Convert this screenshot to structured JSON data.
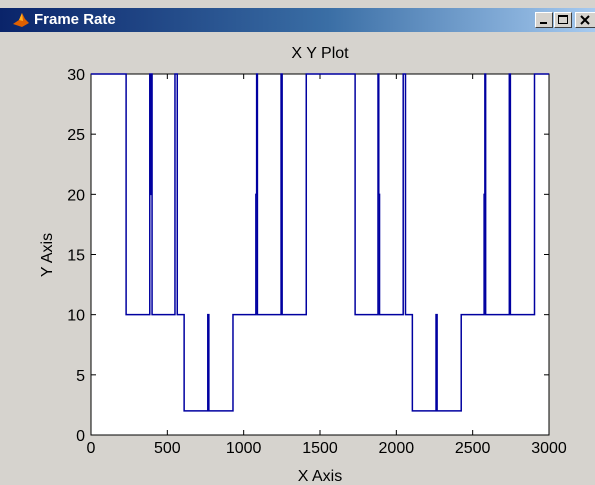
{
  "window": {
    "title": "Frame Rate",
    "icon": "matlab-icon",
    "controls": [
      "minimize-icon",
      "maximize-icon",
      "close-icon"
    ]
  },
  "chart_data": {
    "type": "line",
    "title": "X Y Plot",
    "xlabel": "X Axis",
    "ylabel": "Y Axis",
    "xlim": [
      0,
      3000
    ],
    "ylim": [
      0,
      30
    ],
    "xticks": [
      0,
      500,
      1000,
      1500,
      2000,
      2500,
      3000
    ],
    "yticks": [
      0,
      5,
      10,
      15,
      20,
      25,
      30
    ],
    "grid": false,
    "line_color": "#0000a0",
    "series": [
      {
        "x": [
          0,
          230,
          230,
          385,
          385,
          390,
          390,
          395,
          395,
          400,
          400,
          550,
          550,
          565,
          565,
          580,
          580,
          610,
          610,
          765,
          765,
          772,
          772,
          780,
          780,
          930,
          930,
          1080,
          1080,
          1085,
          1085,
          1090,
          1090,
          1095,
          1095,
          1245,
          1245,
          1252,
          1252,
          1260,
          1260,
          1410,
          1410,
          1730,
          1730,
          1880,
          1880,
          1885,
          1885,
          1890,
          1890,
          1895,
          1895,
          2045,
          2045,
          2060,
          2060,
          2075,
          2075,
          2105,
          2105,
          2260,
          2260,
          2267,
          2267,
          2275,
          2275,
          2425,
          2425,
          2575,
          2575,
          2580,
          2580,
          2585,
          2585,
          2590,
          2590,
          2740,
          2740,
          2747,
          2747,
          2755,
          2755,
          2905,
          2905,
          3000
        ],
        "y": [
          30,
          30,
          10,
          10,
          30,
          30,
          20,
          20,
          30,
          30,
          10,
          10,
          30,
          30,
          10,
          10,
          10,
          10,
          2,
          2,
          10,
          10,
          2,
          2,
          2,
          2,
          10,
          10,
          20,
          20,
          30,
          30,
          10,
          10,
          10,
          10,
          30,
          30,
          10,
          10,
          10,
          10,
          30,
          30,
          10,
          10,
          30,
          30,
          20,
          20,
          10,
          10,
          10,
          10,
          30,
          30,
          10,
          10,
          10,
          10,
          2,
          2,
          10,
          10,
          2,
          2,
          2,
          2,
          10,
          10,
          20,
          20,
          30,
          30,
          10,
          10,
          10,
          10,
          30,
          30,
          10,
          10,
          10,
          10,
          30,
          30
        ]
      }
    ]
  }
}
